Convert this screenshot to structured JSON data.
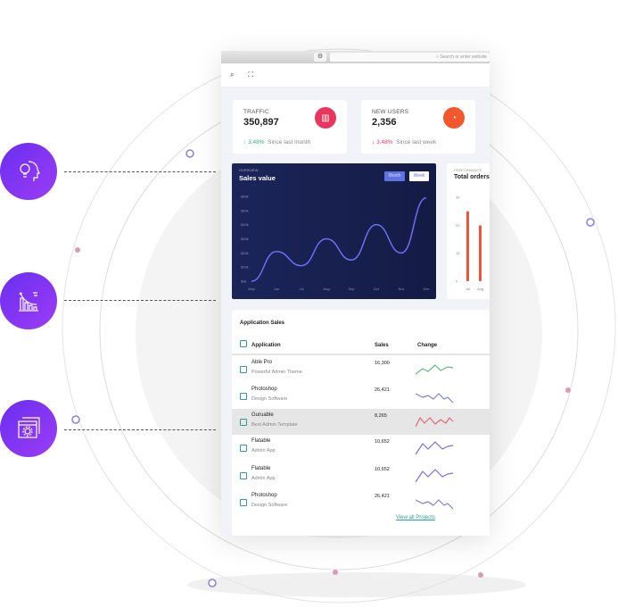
{
  "browser": {
    "search_placeholder": "Search or enter website"
  },
  "stats": [
    {
      "label": "TRAFFIC",
      "value": "350,897",
      "change": "3.48%",
      "period": "Since last month",
      "trend": "up",
      "icon": "bar-chart-icon",
      "color": "#e8365d"
    },
    {
      "label": "NEW USERS",
      "value": "2,356",
      "change": "3.48%",
      "period": "Since last week",
      "trend": "down",
      "icon": "pie-chart-icon",
      "color": "#f2582c"
    }
  ],
  "sales_chart": {
    "overline": "OVERVIEW",
    "title": "Sales value",
    "buttons": [
      "Month",
      "Week"
    ],
    "chart_data": {
      "type": "line",
      "x": [
        "May",
        "Jun",
        "Jul",
        "Aug",
        "Sep",
        "Oct",
        "Nov",
        "Dec"
      ],
      "values": [
        0,
        21,
        11,
        30,
        15,
        40,
        20,
        59
      ],
      "yticks": [
        "$0k",
        "$10k",
        "$20k",
        "$30k",
        "$40k",
        "$50k",
        "$60k"
      ],
      "ylim": [
        0,
        60
      ],
      "color": "#6c6ff0"
    }
  },
  "orders_chart": {
    "overline": "PERFORMANCE",
    "title": "Total orders",
    "chart_data": {
      "type": "bar",
      "categories": [
        "Jul",
        "Aug"
      ],
      "values": [
        25,
        20
      ],
      "yticks": [
        "0",
        "10",
        "20",
        "30"
      ],
      "ylim": [
        0,
        30
      ],
      "color": "#f0553a"
    }
  },
  "app_sales": {
    "title": "Application Sales",
    "columns": [
      "Application",
      "Sales",
      "Change"
    ],
    "rows": [
      {
        "name": "Able Pro",
        "desc": "Powerful Admin Theme",
        "sales": "16,300",
        "color": "#5dbf7f"
      },
      {
        "name": "Photoshop",
        "desc": "Design Software",
        "sales": "26,421",
        "color": "#7b7fd6"
      },
      {
        "name": "Guruable",
        "desc": "Best Admin Template",
        "sales": "8,265",
        "color": "#e06a78"
      },
      {
        "name": "Flatable",
        "desc": "Admin App",
        "sales": "10,652",
        "color": "#7b6fd6"
      },
      {
        "name": "Flatable",
        "desc": "Admin App",
        "sales": "10,652",
        "color": "#7b6fd6"
      },
      {
        "name": "Photoshop",
        "desc": "Design Software",
        "sales": "26,421",
        "color": "#7b7fd6"
      }
    ],
    "link": "View all Projects"
  },
  "features": [
    "idea-head-icon",
    "growth-chart-icon",
    "settings-window-icon"
  ]
}
